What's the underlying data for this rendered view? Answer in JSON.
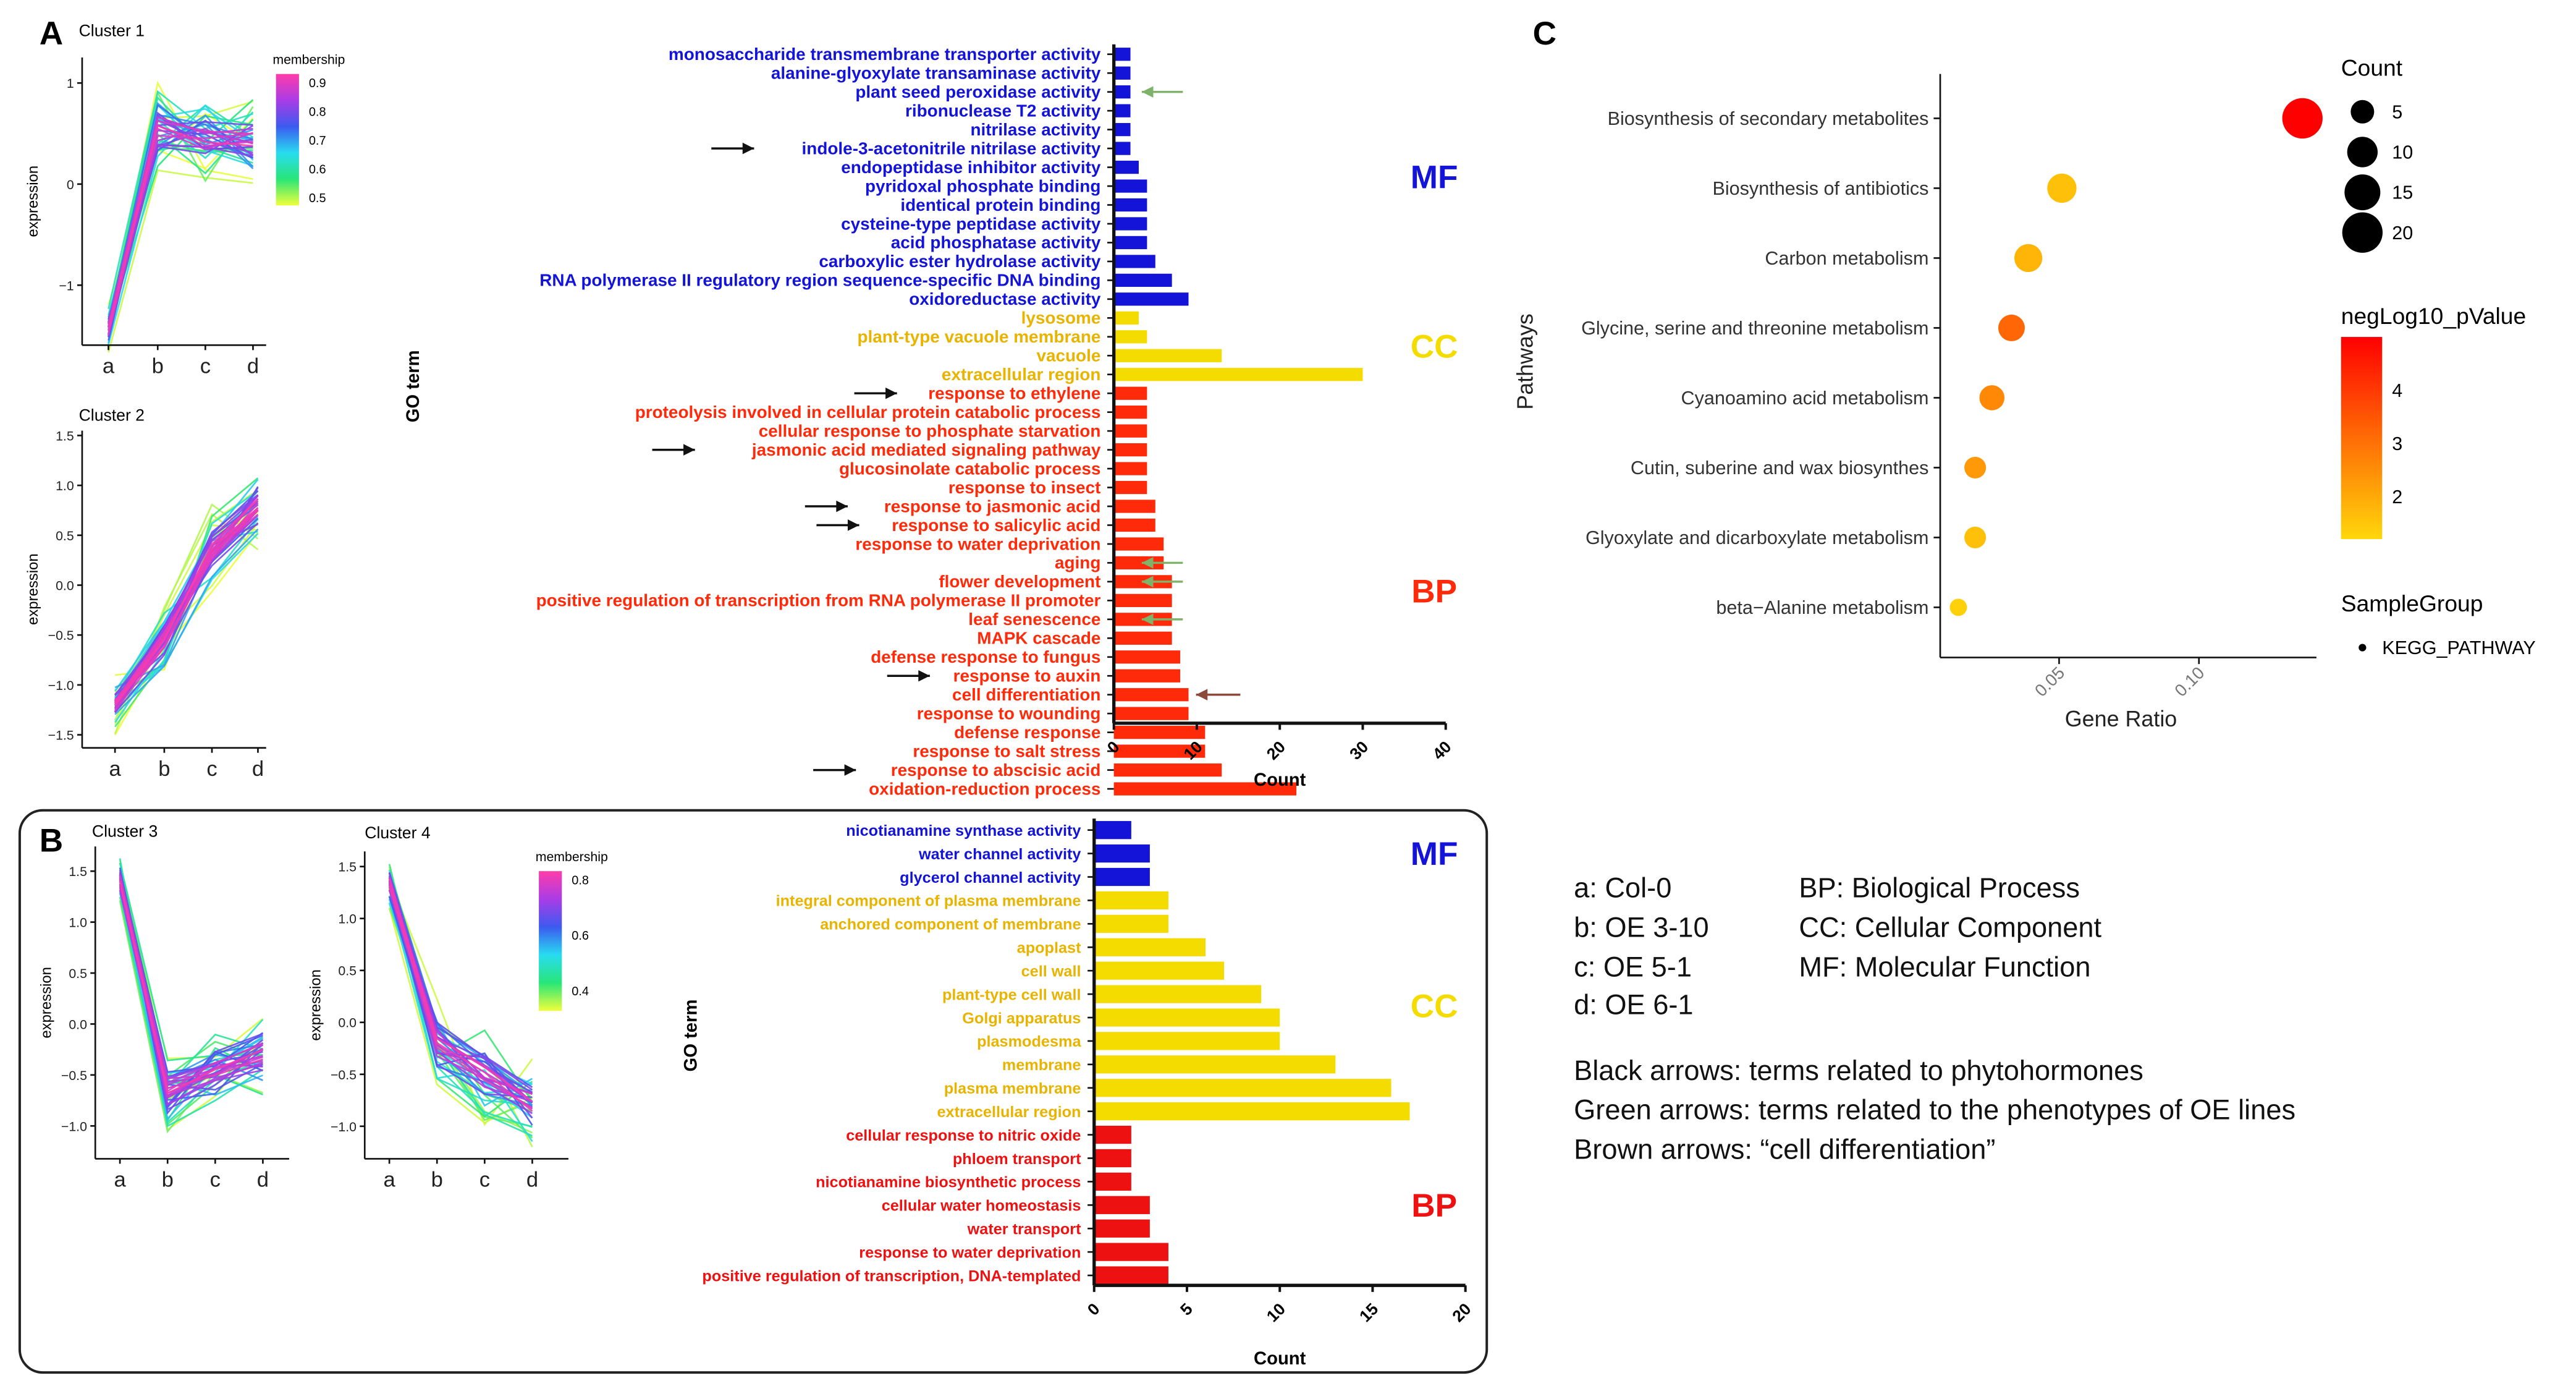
{
  "panels": {
    "A": "A",
    "B": "B",
    "C": "C"
  },
  "colors": {
    "mf": "#1414d8",
    "cc": "#f5dc00",
    "cc_text": "#e8b400",
    "bp": "#ff2a0a",
    "bp_b": "#ee1111",
    "arrow_black": "#111111",
    "arrow_green": "#7fb36a",
    "arrow_brown": "#8b4a3a"
  },
  "chart_data": [
    {
      "type": "line",
      "id": "cluster1",
      "title": "Cluster 1",
      "xlabel": "",
      "ylabel": "expression",
      "categories": [
        "a",
        "b",
        "c",
        "d"
      ],
      "center_profile": [
        -1.45,
        0.55,
        0.45,
        0.42
      ],
      "yticks": [
        "1",
        "0",
        "−1"
      ],
      "ytick_values": [
        1,
        0,
        -1
      ],
      "legend": {
        "title": "membership",
        "ticks": [
          "0.9",
          "0.8",
          "0.7",
          "0.6",
          "0.5"
        ]
      }
    },
    {
      "type": "line",
      "id": "cluster2",
      "title": "Cluster 2",
      "ylabel": "expression",
      "categories": [
        "a",
        "b",
        "c",
        "d"
      ],
      "center_profile": [
        -1.2,
        -0.55,
        0.35,
        0.8
      ],
      "yticks": [
        "1.5",
        "1.0",
        "0.5",
        "0.0",
        "−0.5",
        "−1.0",
        "−1.5"
      ],
      "ytick_values": [
        1.5,
        1,
        0.5,
        0,
        -0.5,
        -1,
        -1.5
      ]
    },
    {
      "type": "bar",
      "id": "go_A",
      "orientation": "horizontal",
      "xlabel": "Count",
      "ylabel": "GO term",
      "xlim": [
        0,
        40
      ],
      "xticks": [
        "0",
        "10",
        "20",
        "30",
        "40"
      ],
      "groups": [
        {
          "name": "MF",
          "terms": [
            "monosaccharide transmembrane transporter activity",
            "alanine-glyoxylate transaminase activity",
            "plant seed peroxidase activity",
            "ribonuclease T2 activity",
            "nitrilase activity",
            "indole-3-acetonitrile nitrilase activity",
            "endopeptidase inhibitor activity",
            "pyridoxal phosphate binding",
            "identical protein binding",
            "cysteine-type peptidase activity",
            "acid phosphatase activity",
            "carboxylic ester hydrolase activity",
            "RNA polymerase II regulatory region sequence-specific DNA binding",
            "oxidoreductase activity"
          ],
          "values": [
            2,
            2,
            2,
            2,
            2,
            2,
            3,
            4,
            4,
            4,
            4,
            5,
            7,
            9
          ]
        },
        {
          "name": "CC",
          "terms": [
            "lysosome",
            "plant-type vacuole membrane",
            "vacuole",
            "extracellular region"
          ],
          "values": [
            3,
            4,
            13,
            30
          ]
        },
        {
          "name": "BP",
          "terms": [
            "response to ethylene",
            "proteolysis involved in cellular protein catabolic process",
            "cellular response to phosphate starvation",
            "jasmonic acid mediated signaling pathway",
            "glucosinolate catabolic process",
            "response to insect",
            "response to jasmonic acid",
            "response to salicylic acid",
            "response to water deprivation",
            "aging",
            "flower development",
            "positive regulation of transcription from RNA polymerase II promoter",
            "leaf senescence",
            "MAPK cascade",
            "defense response to fungus",
            "response to auxin",
            "cell differentiation",
            "response to wounding",
            "defense response",
            "response to salt stress",
            "response to abscisic acid",
            "oxidation-reduction process"
          ],
          "values": [
            4,
            4,
            4,
            4,
            4,
            4,
            5,
            5,
            6,
            6,
            7,
            7,
            7,
            7,
            8,
            8,
            9,
            9,
            11,
            11,
            13,
            22
          ]
        }
      ],
      "arrows": {
        "black": [
          "indole-3-acetonitrile nitrilase activity",
          "response to ethylene",
          "jasmonic acid mediated signaling pathway",
          "response to jasmonic acid",
          "response to salicylic acid",
          "response to auxin",
          "response to abscisic acid"
        ],
        "green": [
          "plant seed peroxidase activity",
          "aging",
          "flower development",
          "leaf senescence"
        ],
        "brown": [
          "cell differentiation"
        ]
      }
    },
    {
      "type": "line",
      "id": "cluster3",
      "title": "Cluster 3",
      "ylabel": "expression",
      "categories": [
        "a",
        "b",
        "c",
        "d"
      ],
      "center_profile": [
        1.4,
        -0.65,
        -0.45,
        -0.3
      ],
      "yticks": [
        "1.5",
        "1.0",
        "0.5",
        "0.0",
        "−0.5",
        "−1.0"
      ],
      "ytick_values": [
        1.5,
        1,
        0.5,
        0,
        -0.5,
        -1
      ]
    },
    {
      "type": "line",
      "id": "cluster4",
      "title": "Cluster 4",
      "ylabel": "expression",
      "categories": [
        "a",
        "b",
        "c",
        "d"
      ],
      "center_profile": [
        1.35,
        -0.2,
        -0.5,
        -0.8
      ],
      "yticks": [
        "1.5",
        "1.0",
        "0.5",
        "0.0",
        "−0.5",
        "−1.0"
      ],
      "ytick_values": [
        1.5,
        1,
        0.5,
        0,
        -0.5,
        -1
      ],
      "legend": {
        "title": "membership",
        "ticks": [
          "0.8",
          "0.6",
          "0.4"
        ]
      }
    },
    {
      "type": "bar",
      "id": "go_B",
      "orientation": "horizontal",
      "xlabel": "Count",
      "ylabel": "GO term",
      "xlim": [
        0,
        20
      ],
      "xticks": [
        "0",
        "5",
        "10",
        "15",
        "20"
      ],
      "groups": [
        {
          "name": "MF",
          "terms": [
            "nicotianamine synthase activity",
            "water channel activity",
            "glycerol channel activity"
          ],
          "values": [
            2,
            3,
            3
          ]
        },
        {
          "name": "CC",
          "terms": [
            "integral component of plasma membrane",
            "anchored component of membrane",
            "apoplast",
            "cell wall",
            "plant-type cell wall",
            "Golgi apparatus",
            "plasmodesma",
            "membrane",
            "plasma membrane",
            "extracellular region"
          ],
          "values": [
            4,
            4,
            6,
            7,
            9,
            10,
            10,
            13,
            16,
            17
          ]
        },
        {
          "name": "BP",
          "terms": [
            "cellular response to nitric oxide",
            "phloem transport",
            "nicotianamine biosynthetic process",
            "cellular water homeostasis",
            "water transport",
            "response to water deprivation",
            "positive regulation of transcription, DNA-templated"
          ],
          "values": [
            2,
            2,
            2,
            3,
            3,
            4,
            4
          ]
        }
      ]
    },
    {
      "type": "scatter",
      "id": "kegg_C",
      "xlabel": "Gene Ratio",
      "ylabel": "Pathways",
      "xticks": [
        "0.05",
        "0.10"
      ],
      "xtick_values": [
        0.05,
        0.1
      ],
      "xlim": [
        0.0075,
        0.142
      ],
      "pathways": [
        "Biosynthesis of secondary metabolites",
        "Biosynthesis of antibiotics",
        "Carbon metabolism",
        "Glycine, serine and threonine metabolism",
        "Cyanoamino acid metabolism",
        "Cutin, suberine and wax biosynthes",
        "Glyoxylate and dicarboxylate metabolism",
        "beta−Alanine metabolism"
      ],
      "gene_ratio": [
        0.137,
        0.051,
        0.039,
        0.033,
        0.026,
        0.02,
        0.02,
        0.014
      ],
      "count": [
        20,
        9,
        8,
        7,
        6,
        4,
        4,
        2
      ],
      "negLog10_pValue": [
        5.0,
        1.6,
        1.8,
        3.2,
        2.6,
        2.3,
        1.6,
        1.3
      ],
      "legend": {
        "count_title": "Count",
        "count_ticks": [
          "5",
          "10",
          "15",
          "20"
        ],
        "count_values": [
          5,
          10,
          15,
          20
        ],
        "color_title": "negLog10_pValue",
        "color_ticks": [
          "4",
          "3",
          "2"
        ],
        "color_values": [
          4,
          3,
          2
        ],
        "group_title": "SampleGroup",
        "group_item": "KEGG_PATHWAY"
      }
    }
  ],
  "notes": {
    "samples": [
      "a: Col-0",
      "b: OE 3-10",
      "c: OE 5-1",
      "d: OE 6-1"
    ],
    "categories": [
      "BP: Biological Process",
      "CC: Cellular Component",
      "MF: Molecular Function"
    ],
    "arrows": [
      "Black arrows: terms related to phytohormones",
      "Green arrows: terms related to the phenotypes of OE lines",
      "Brown arrows: “cell differentiation”"
    ]
  }
}
